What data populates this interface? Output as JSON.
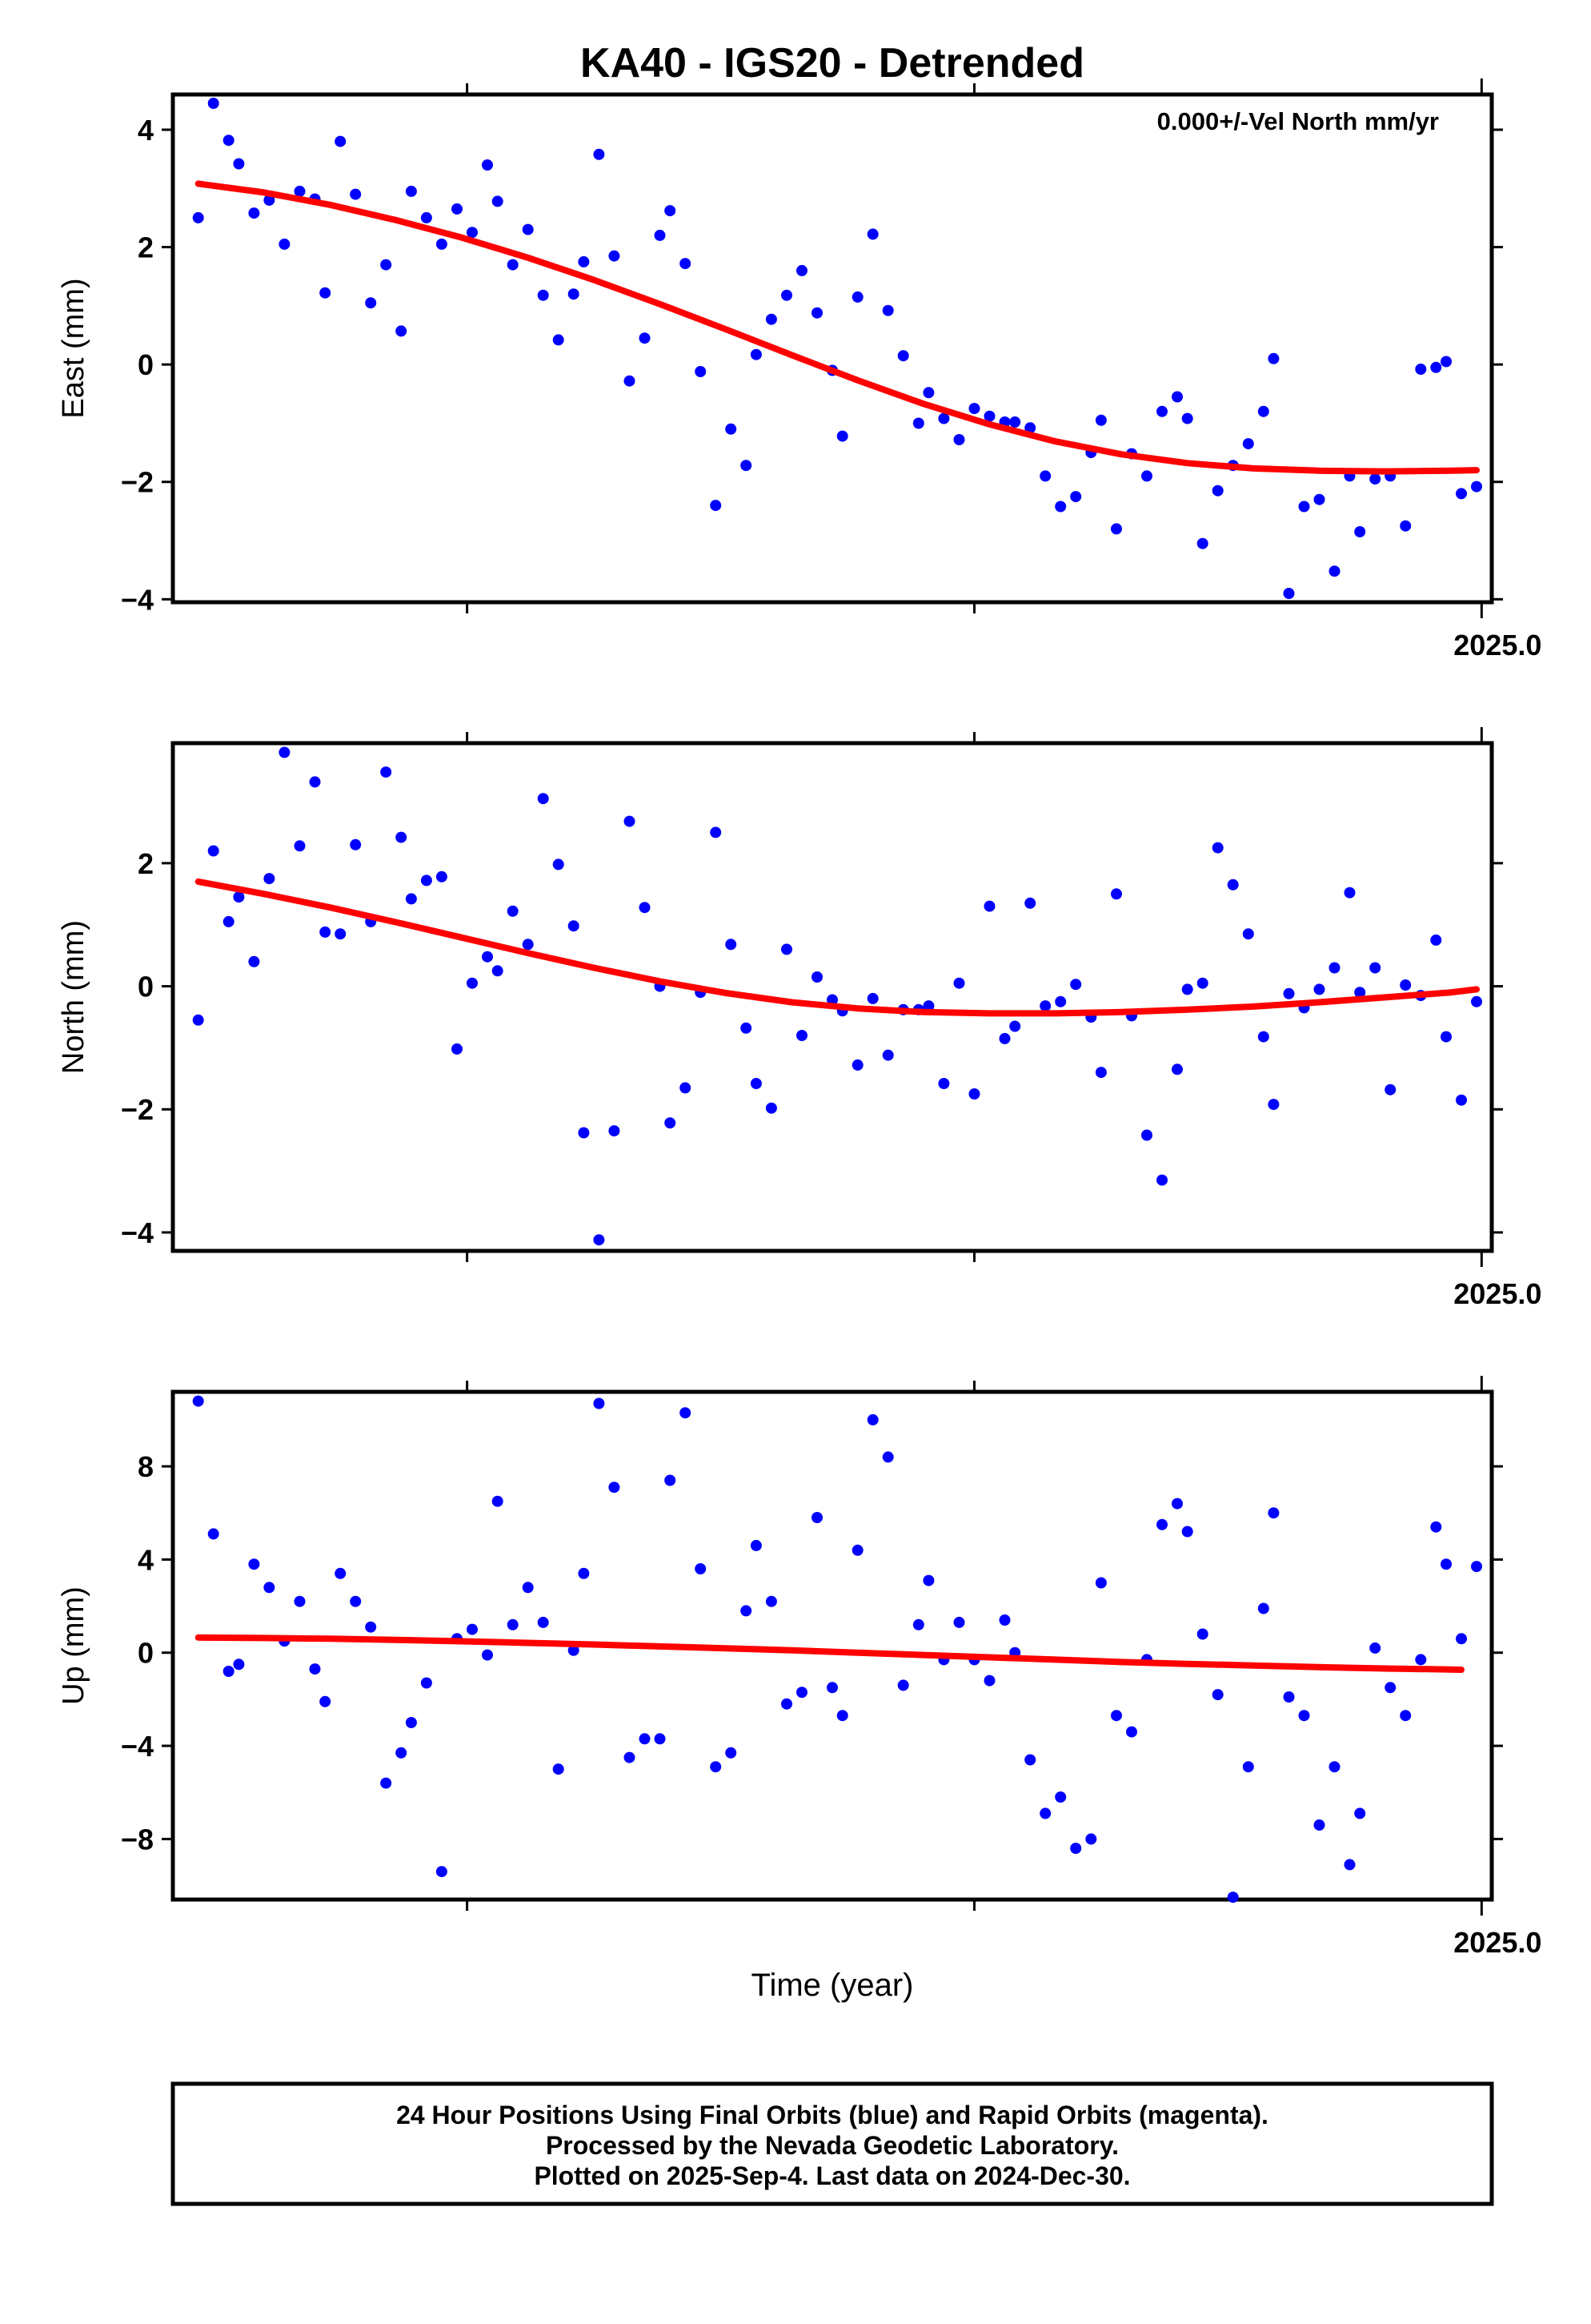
{
  "title": "KA40 - IGS20 - Detrended",
  "xlabel": "Time (year)",
  "footer": {
    "line1": "24 Hour Positions Using Final Orbits (blue) and Rapid Orbits (magenta).",
    "line2": "Processed by the Nevada Geodetic Laboratory.",
    "line3": "Plotted on 2025-Sep-4. Last data on 2024-Dec-30."
  },
  "colors": {
    "points": "#0000ff",
    "fit": "#ff0000",
    "frame": "#000000"
  },
  "chart_data": [
    {
      "type": "scatter",
      "ylabel": "East (mm)",
      "annotation": "0.000+/-Vel North mm/yr",
      "xtick_label": "2025.0",
      "xlim": [
        2022.42,
        2025.02
      ],
      "ylim": [
        -4.05,
        4.6
      ],
      "yticks": [
        -4,
        -2,
        0,
        2,
        4
      ],
      "x": [
        2022.47,
        2022.5,
        2022.53,
        2022.55,
        2022.58,
        2022.61,
        2022.64,
        2022.67,
        2022.7,
        2022.72,
        2022.75,
        2022.78,
        2022.81,
        2022.84,
        2022.87,
        2022.89,
        2022.92,
        2022.95,
        2022.98,
        2023.01,
        2023.04,
        2023.06,
        2023.09,
        2023.12,
        2023.15,
        2023.18,
        2023.21,
        2023.23,
        2023.26,
        2023.29,
        2023.32,
        2023.35,
        2023.38,
        2023.4,
        2023.43,
        2023.46,
        2023.49,
        2023.52,
        2023.55,
        2023.57,
        2023.6,
        2023.63,
        2023.66,
        2023.69,
        2023.72,
        2023.74,
        2023.77,
        2023.8,
        2023.83,
        2023.86,
        2023.89,
        2023.91,
        2023.94,
        2023.97,
        2024.0,
        2024.03,
        2024.06,
        2024.08,
        2024.11,
        2024.14,
        2024.17,
        2024.2,
        2024.23,
        2024.25,
        2024.28,
        2024.31,
        2024.34,
        2024.37,
        2024.4,
        2024.42,
        2024.45,
        2024.48,
        2024.51,
        2024.54,
        2024.57,
        2024.59,
        2024.62,
        2024.65,
        2024.68,
        2024.71,
        2024.74,
        2024.76,
        2024.79,
        2024.82,
        2024.85,
        2024.88,
        2024.91,
        2024.93,
        2024.96,
        2024.99
      ],
      "y": [
        2.5,
        4.45,
        3.82,
        3.42,
        2.58,
        2.8,
        2.05,
        2.95,
        2.82,
        1.22,
        3.8,
        2.9,
        1.05,
        1.7,
        0.57,
        2.95,
        2.5,
        2.05,
        2.65,
        2.25,
        3.4,
        2.78,
        1.7,
        2.3,
        1.18,
        0.42,
        1.2,
        1.75,
        3.58,
        1.85,
        -0.28,
        0.45,
        2.2,
        2.62,
        1.72,
        -0.12,
        -2.4,
        -1.1,
        -1.72,
        0.17,
        0.77,
        1.18,
        1.6,
        0.88,
        -0.1,
        -1.22,
        1.15,
        2.22,
        0.92,
        0.15,
        -1.0,
        -0.48,
        -0.92,
        -1.28,
        -0.75,
        -0.88,
        -0.98,
        -0.98,
        -1.08,
        -1.9,
        -2.42,
        -2.25,
        -1.5,
        -0.95,
        -2.8,
        -1.52,
        -1.9,
        -0.8,
        -0.55,
        -0.92,
        -3.05,
        -2.15,
        -1.72,
        -1.35,
        -0.8,
        0.1,
        -3.9,
        -2.42,
        -2.3,
        -3.52,
        -1.9,
        -2.85,
        -1.95,
        -1.9,
        -2.75,
        -0.08,
        -0.05,
        0.05,
        -2.2,
        -2.08
      ],
      "fit": {
        "name": "",
        "x": [
          2022.47,
          2022.6,
          2022.73,
          2022.86,
          2022.99,
          2023.12,
          2023.25,
          2023.38,
          2023.51,
          2023.64,
          2023.77,
          2023.9,
          2024.03,
          2024.16,
          2024.29,
          2024.42,
          2024.55,
          2024.68,
          2024.81,
          2024.94,
          2024.99
        ],
        "y": [
          3.08,
          2.93,
          2.72,
          2.46,
          2.16,
          1.82,
          1.44,
          1.03,
          0.6,
          0.16,
          -0.27,
          -0.67,
          -1.02,
          -1.31,
          -1.53,
          -1.68,
          -1.77,
          -1.81,
          -1.82,
          -1.81,
          -1.8
        ]
      }
    },
    {
      "type": "scatter",
      "ylabel": "North (mm)",
      "xtick_label": "2025.0",
      "xlim": [
        2022.42,
        2025.02
      ],
      "ylim": [
        -4.3,
        3.95
      ],
      "yticks": [
        -4,
        -2,
        0,
        2
      ],
      "x": [
        2022.47,
        2022.5,
        2022.53,
        2022.55,
        2022.58,
        2022.61,
        2022.64,
        2022.67,
        2022.7,
        2022.72,
        2022.75,
        2022.78,
        2022.81,
        2022.84,
        2022.87,
        2022.89,
        2022.92,
        2022.95,
        2022.98,
        2023.01,
        2023.04,
        2023.06,
        2023.09,
        2023.12,
        2023.15,
        2023.18,
        2023.21,
        2023.23,
        2023.26,
        2023.29,
        2023.32,
        2023.35,
        2023.38,
        2023.4,
        2023.43,
        2023.46,
        2023.49,
        2023.52,
        2023.55,
        2023.57,
        2023.6,
        2023.63,
        2023.66,
        2023.69,
        2023.72,
        2023.74,
        2023.77,
        2023.8,
        2023.83,
        2023.86,
        2023.89,
        2023.91,
        2023.94,
        2023.97,
        2024.0,
        2024.03,
        2024.06,
        2024.08,
        2024.11,
        2024.14,
        2024.17,
        2024.2,
        2024.23,
        2024.25,
        2024.28,
        2024.31,
        2024.34,
        2024.37,
        2024.4,
        2024.42,
        2024.45,
        2024.48,
        2024.51,
        2024.54,
        2024.57,
        2024.59,
        2024.62,
        2024.65,
        2024.68,
        2024.71,
        2024.74,
        2024.76,
        2024.79,
        2024.82,
        2024.85,
        2024.88,
        2024.91,
        2024.93,
        2024.96,
        2024.99
      ],
      "y": [
        -0.55,
        2.2,
        1.05,
        1.45,
        0.4,
        1.75,
        3.8,
        2.28,
        3.32,
        0.88,
        0.85,
        2.3,
        1.05,
        3.48,
        2.42,
        1.42,
        1.72,
        1.78,
        -1.02,
        0.05,
        0.48,
        0.25,
        1.22,
        0.68,
        3.05,
        1.98,
        0.98,
        -2.38,
        -4.12,
        -2.35,
        2.68,
        1.28,
        0.0,
        -2.22,
        -1.65,
        -0.1,
        2.5,
        0.68,
        -0.68,
        -1.58,
        -1.98,
        0.6,
        -0.8,
        0.15,
        -0.22,
        -0.4,
        -1.28,
        -0.2,
        -1.12,
        -0.38,
        -0.38,
        -0.32,
        -1.58,
        0.05,
        -1.75,
        1.3,
        -0.85,
        -0.65,
        1.35,
        -0.32,
        -0.25,
        0.03,
        -0.5,
        -1.4,
        1.5,
        -0.48,
        -2.42,
        -3.15,
        -1.35,
        -0.05,
        0.05,
        2.25,
        1.65,
        0.85,
        -0.82,
        -1.92,
        -0.12,
        -0.35,
        -0.05,
        0.3,
        1.52,
        -0.1,
        0.3,
        -1.68,
        0.02,
        -0.15,
        0.75,
        -0.82,
        -1.85,
        -0.25
      ],
      "fit": {
        "name": "",
        "x": [
          2022.47,
          2022.6,
          2022.73,
          2022.86,
          2022.99,
          2023.12,
          2023.25,
          2023.38,
          2023.51,
          2023.64,
          2023.77,
          2023.9,
          2024.03,
          2024.16,
          2024.29,
          2024.42,
          2024.55,
          2024.68,
          2024.81,
          2024.94,
          2024.99
        ],
        "y": [
          1.7,
          1.5,
          1.28,
          1.04,
          0.79,
          0.54,
          0.3,
          0.08,
          -0.11,
          -0.26,
          -0.36,
          -0.42,
          -0.44,
          -0.44,
          -0.42,
          -0.38,
          -0.33,
          -0.26,
          -0.18,
          -0.1,
          -0.05
        ]
      }
    },
    {
      "type": "scatter",
      "ylabel": "Up (mm)",
      "xtick_label": "2025.0",
      "xlim": [
        2022.42,
        2025.02
      ],
      "ylim": [
        -10.6,
        11.2
      ],
      "yticks": [
        -8,
        -4,
        0,
        4,
        8
      ],
      "x": [
        2022.47,
        2022.5,
        2022.53,
        2022.55,
        2022.58,
        2022.61,
        2022.64,
        2022.67,
        2022.7,
        2022.72,
        2022.75,
        2022.78,
        2022.81,
        2022.84,
        2022.87,
        2022.89,
        2022.92,
        2022.95,
        2022.98,
        2023.01,
        2023.04,
        2023.06,
        2023.09,
        2023.12,
        2023.15,
        2023.18,
        2023.21,
        2023.23,
        2023.26,
        2023.29,
        2023.32,
        2023.35,
        2023.38,
        2023.4,
        2023.43,
        2023.46,
        2023.49,
        2023.52,
        2023.55,
        2023.57,
        2023.6,
        2023.63,
        2023.66,
        2023.69,
        2023.72,
        2023.74,
        2023.77,
        2023.8,
        2023.83,
        2023.86,
        2023.89,
        2023.91,
        2023.94,
        2023.97,
        2024.0,
        2024.03,
        2024.06,
        2024.08,
        2024.11,
        2024.14,
        2024.17,
        2024.2,
        2024.23,
        2024.25,
        2024.28,
        2024.31,
        2024.34,
        2024.37,
        2024.4,
        2024.42,
        2024.45,
        2024.48,
        2024.51,
        2024.54,
        2024.57,
        2024.59,
        2024.62,
        2024.65,
        2024.68,
        2024.71,
        2024.74,
        2024.76,
        2024.79,
        2024.82,
        2024.85,
        2024.88,
        2024.91,
        2024.93,
        2024.96,
        2024.99
      ],
      "y": [
        10.8,
        5.1,
        -0.8,
        -0.5,
        3.8,
        2.8,
        0.5,
        2.2,
        -0.7,
        -2.1,
        3.4,
        2.2,
        1.1,
        -5.6,
        -4.3,
        -3.0,
        -1.3,
        -9.4,
        0.6,
        1.0,
        -0.1,
        6.5,
        1.2,
        2.8,
        1.3,
        -5.0,
        0.1,
        3.4,
        10.7,
        7.1,
        -4.5,
        -3.7,
        -3.7,
        7.4,
        10.3,
        3.6,
        -4.9,
        -4.3,
        1.8,
        4.6,
        2.2,
        -2.2,
        -1.7,
        5.8,
        -1.5,
        -2.7,
        4.4,
        10.0,
        8.4,
        -1.4,
        1.2,
        3.1,
        -0.3,
        1.3,
        -0.3,
        -1.2,
        1.4,
        0.0,
        -4.6,
        -6.9,
        -6.2,
        -8.4,
        -8.0,
        3.0,
        -2.7,
        -3.4,
        -0.3,
        5.5,
        6.4,
        5.2,
        0.8,
        -1.8,
        -10.5,
        -4.9,
        1.9,
        6.0,
        -1.9,
        -2.7,
        -7.4,
        -4.9,
        -9.1,
        -6.9,
        0.2,
        -1.5,
        -2.7,
        -0.3,
        5.4,
        3.8,
        0.6,
        3.7
      ],
      "fit": {
        "name": "",
        "x": [
          2022.47,
          2022.6,
          2022.73,
          2022.86,
          2022.99,
          2023.12,
          2023.25,
          2023.38,
          2023.51,
          2023.64,
          2023.77,
          2023.9,
          2024.03,
          2024.16,
          2024.29,
          2024.42,
          2024.55,
          2024.68,
          2024.81,
          2024.94,
          2024.96
        ],
        "y": [
          0.65,
          0.63,
          0.6,
          0.55,
          0.49,
          0.42,
          0.35,
          0.27,
          0.19,
          0.1,
          0.0,
          -0.1,
          -0.2,
          -0.3,
          -0.4,
          -0.48,
          -0.55,
          -0.62,
          -0.68,
          -0.72,
          -0.73
        ]
      }
    }
  ]
}
